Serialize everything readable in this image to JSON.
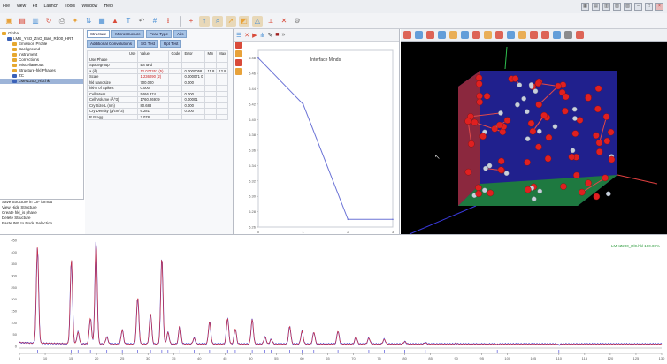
{
  "menu": [
    "File",
    "View",
    "Fit",
    "Launch",
    "Tools",
    "Window",
    "Help"
  ],
  "window_controls": [
    "minimize",
    "maximize",
    "close"
  ],
  "toolbar_icons": [
    "new-icon",
    "open-icon",
    "save-icon",
    "refresh-icon",
    "print-icon",
    "wand-icon",
    "sort-icon",
    "table-icon",
    "chart-icon",
    "text-icon",
    "undo-icon",
    "grid-icon",
    "export-icon",
    "separator",
    "plus-icon",
    "arrow-icon",
    "zoom-icon",
    "pointer-icon",
    "select-icon",
    "measure-icon",
    "ruler-icon",
    "lock-icon",
    "settings-icon"
  ],
  "tree": {
    "items": [
      {
        "label": "Global",
        "indent": 0,
        "color": "#e6a830"
      },
      {
        "label": "LMS_YSO_ZnO_Ba0_Rb00_HRT",
        "indent": 1,
        "color": "#3b62b8"
      },
      {
        "label": "Emission Profile",
        "indent": 2,
        "color": "#e6a830"
      },
      {
        "label": "Background",
        "indent": 2,
        "color": "#e6a830"
      },
      {
        "label": "Instrument",
        "indent": 2,
        "color": "#e6a830"
      },
      {
        "label": "Corrections",
        "indent": 2,
        "color": "#e6a830"
      },
      {
        "label": "Miscellaneous",
        "indent": 2,
        "color": "#e6a830"
      },
      {
        "label": "Structure-hkl Phases",
        "indent": 2,
        "color": "#e6a830"
      },
      {
        "label": "ZC",
        "indent": 2,
        "color": "#3b62b8"
      },
      {
        "label": "LMHZ200_Rl0.hkl",
        "indent": 2,
        "color": "#3b62b8",
        "selected": true
      }
    ]
  },
  "actions": [
    "Save Structure in CIF format",
    "View Hide Structure",
    "Create hkl_is phase",
    "Delete Structure",
    "Paste INP to Node Selection"
  ],
  "params": {
    "tabs": [
      "Structure",
      "Microstructure",
      "Peak Type",
      "Atis",
      "Additional Convolutions",
      "SG Test",
      "Rpt Test"
    ],
    "columns": [
      "",
      "Use",
      "Value",
      "Code",
      "Error",
      "Min",
      "Max"
    ],
    "rows": [
      {
        "name": "Use Phase",
        "use": "",
        "value": "",
        "code": "",
        "error": "",
        "min": "",
        "max": "",
        "red": false
      },
      {
        "name": "Spacegroup",
        "use": "",
        "value": "Ba Ia-d",
        "code": "",
        "error": "",
        "min": "",
        "max": "",
        "red": false
      },
      {
        "name": "a (Å)",
        "use": "",
        "value": "12.074357 (5)",
        "code": "",
        "error": "0.0000058",
        "min": "11.8",
        "max": "12.8",
        "red": true
      },
      {
        "name": "Scale",
        "use": "",
        "value": "1.236090 (2)",
        "code": "",
        "error": "0.000071 0",
        "min": "",
        "max": "",
        "red": true
      },
      {
        "name": "hkl Nanosize",
        "use": "",
        "value": "700.000",
        "code": "",
        "error": "0.000",
        "min": "",
        "max": "",
        "red": false
      },
      {
        "name": "hkl% of Spikes",
        "use": "",
        "value": "0.000",
        "code": "",
        "error": "",
        "min": "",
        "max": "",
        "red": false
      },
      {
        "name": "Cell Mass",
        "use": "",
        "value": "5466.374",
        "code": "",
        "error": "0.000",
        "min": "",
        "max": "",
        "red": false
      },
      {
        "name": "Cell Volume (Å^3)",
        "use": "",
        "value": "1760.26979",
        "code": "",
        "error": "0.00001",
        "min": "",
        "max": "",
        "red": false
      },
      {
        "name": "Cry Size L (nm)",
        "use": "",
        "value": "80.688",
        "code": "",
        "error": "0.000",
        "min": "",
        "max": "",
        "red": false
      },
      {
        "name": "Cry Density (g/cm^3)",
        "use": "",
        "value": "6.281",
        "code": "",
        "error": "0.000",
        "min": "",
        "max": "",
        "red": false
      },
      {
        "name": "R Bragg",
        "use": "",
        "value": "2.078",
        "code": "",
        "error": "",
        "min": "",
        "max": "",
        "red": false
      }
    ]
  },
  "chart_panel_tools": [
    "list-icon",
    "close-icon",
    "play-icon",
    "hierarchy-icon",
    "settings-icon",
    "stop-icon",
    "chevron-icon"
  ],
  "chart_data": [
    {
      "type": "line",
      "title": "Interface Minds",
      "x": [
        0,
        1,
        2,
        3
      ],
      "series": [
        {
          "values": [
            6.48,
            6.42,
            6.27,
            6.27
          ]
        }
      ],
      "xlim": [
        0,
        3
      ],
      "ylim": [
        6.26,
        6.49
      ],
      "yticks": [
        "6.48",
        "6.46",
        "6.44",
        "6.42",
        "6.40",
        "6.38",
        "6.36",
        "6.34",
        "6.32",
        "6.30",
        "6.28",
        "6.26"
      ],
      "xticks": [
        "0",
        "1",
        "2",
        "3"
      ],
      "grid": false,
      "color": "#6b73d6"
    },
    {
      "type": "line",
      "title": "",
      "legend": "LMHZ200_Rl0.hkl  100.00%",
      "xlim": [
        5,
        130
      ],
      "ylim": [
        0,
        450
      ],
      "yticks": [
        "450",
        "400",
        "350",
        "300",
        "250",
        "200",
        "150",
        "100",
        "50",
        "0"
      ],
      "xticks": [
        "5",
        "10",
        "15",
        "20",
        "25",
        "30",
        "35",
        "40",
        "45",
        "50",
        "55",
        "60",
        "65",
        "70",
        "75",
        "80",
        "85",
        "90",
        "95",
        "100",
        "105",
        "110",
        "115",
        "120",
        "125",
        "130"
      ],
      "peaks": [
        {
          "x": 8.5,
          "y": 420
        },
        {
          "x": 15.1,
          "y": 370
        },
        {
          "x": 16.4,
          "y": 60
        },
        {
          "x": 18.8,
          "y": 120
        },
        {
          "x": 19.9,
          "y": 450
        },
        {
          "x": 22.0,
          "y": 40
        },
        {
          "x": 25.0,
          "y": 70
        },
        {
          "x": 28.0,
          "y": 210
        },
        {
          "x": 30.5,
          "y": 140
        },
        {
          "x": 32.7,
          "y": 380
        },
        {
          "x": 33.9,
          "y": 60
        },
        {
          "x": 36.2,
          "y": 90
        },
        {
          "x": 39.0,
          "y": 35
        },
        {
          "x": 42.0,
          "y": 105
        },
        {
          "x": 45.5,
          "y": 120
        },
        {
          "x": 47.0,
          "y": 75
        },
        {
          "x": 50.3,
          "y": 115
        },
        {
          "x": 52.8,
          "y": 40
        },
        {
          "x": 54.0,
          "y": 30
        },
        {
          "x": 57.6,
          "y": 85
        },
        {
          "x": 60.0,
          "y": 65
        },
        {
          "x": 62.3,
          "y": 60
        },
        {
          "x": 67.0,
          "y": 65
        },
        {
          "x": 70.5,
          "y": 40
        },
        {
          "x": 73.0,
          "y": 35
        },
        {
          "x": 76.0,
          "y": 30
        },
        {
          "x": 80.0,
          "y": 20
        },
        {
          "x": 84.0,
          "y": 15
        },
        {
          "x": 90.0,
          "y": 12
        },
        {
          "x": 98.0,
          "y": 8
        },
        {
          "x": 110.0,
          "y": 6
        }
      ],
      "baseline": 10,
      "colors": {
        "observed": "#3a3ad6",
        "calculated": "#e03030",
        "difference": "#909090"
      }
    }
  ]
}
